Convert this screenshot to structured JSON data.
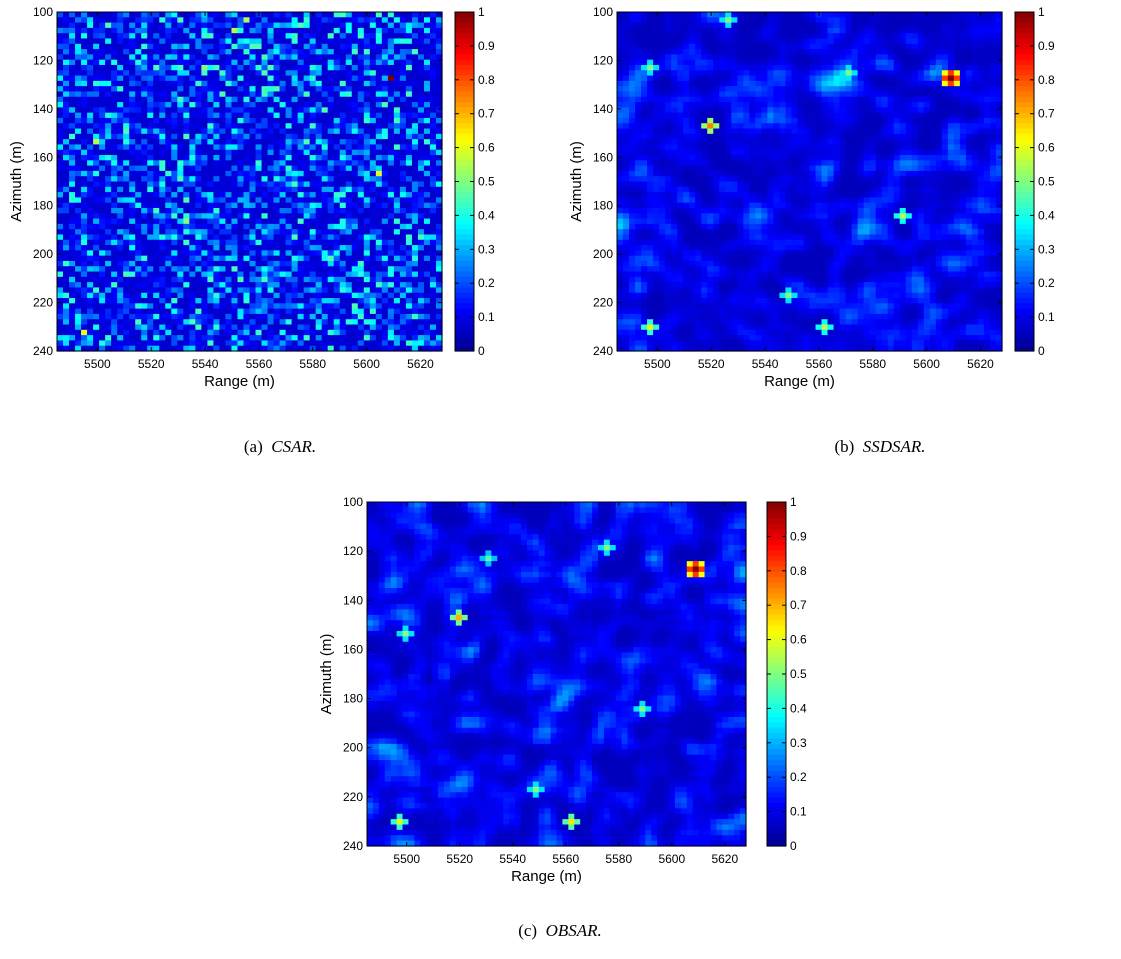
{
  "colormap": "jet",
  "colorbar": {
    "range": [
      0,
      1
    ],
    "ticks": [
      "0",
      "0.1",
      "0.2",
      "0.3",
      "0.4",
      "0.5",
      "0.6",
      "0.7",
      "0.8",
      "0.9",
      "1"
    ],
    "colors": [
      "#00008f",
      "#0000ff",
      "#00ffff",
      "#ffff00",
      "#ff0000",
      "#800000"
    ]
  },
  "panels": [
    {
      "id": "a",
      "caption_prefix": "(a)",
      "caption_name": "CSAR.",
      "smoothness": "none"
    },
    {
      "id": "b",
      "caption_prefix": "(b)",
      "caption_name": "SSDSAR.",
      "smoothness": "smooth"
    },
    {
      "id": "c",
      "caption_prefix": "(c)",
      "caption_name": "OBSAR.",
      "smoothness": "smooth"
    }
  ],
  "chart_data": [
    {
      "type": "heatmap",
      "xlabel": "Range (m)",
      "ylabel": "Azimuth (m)",
      "xlim": [
        5485,
        5628
      ],
      "ylim": [
        100,
        240
      ],
      "y_reversed": true,
      "x_ticks": [
        5500,
        5520,
        5540,
        5560,
        5580,
        5600,
        5620
      ],
      "y_ticks": [
        100,
        120,
        140,
        160,
        180,
        200,
        220,
        240
      ],
      "grid": [
        64,
        64
      ],
      "clim": [
        0,
        1
      ],
      "target": {
        "x": 5610,
        "y": 127,
        "value": 1.0,
        "size": 1
      },
      "hotspots": [
        {
          "x": 5495,
          "y": 232,
          "value": 0.6
        },
        {
          "x": 5550,
          "y": 108,
          "value": 0.55
        },
        {
          "x": 5500,
          "y": 153,
          "value": 0.55
        },
        {
          "x": 5533,
          "y": 186,
          "value": 0.5
        },
        {
          "x": 5605,
          "y": 167,
          "value": 0.6
        },
        {
          "x": 5555,
          "y": 103,
          "value": 0.55
        },
        {
          "x": 5540,
          "y": 124,
          "value": 0.5
        },
        {
          "x": 5585,
          "y": 141,
          "value": 0.45
        }
      ]
    },
    {
      "type": "heatmap",
      "xlabel": "Range (m)",
      "ylabel": "Azimuth (m)",
      "xlim": [
        5485,
        5628
      ],
      "ylim": [
        100,
        240
      ],
      "y_reversed": true,
      "x_ticks": [
        5500,
        5520,
        5540,
        5560,
        5580,
        5600,
        5620
      ],
      "y_ticks": [
        100,
        120,
        140,
        160,
        180,
        200,
        220,
        240
      ],
      "grid": [
        64,
        64
      ],
      "clim": [
        0,
        1
      ],
      "target": {
        "x": 5609,
        "y": 127,
        "value": 1.0,
        "size": 3
      },
      "hotspots": [
        {
          "x": 5519,
          "y": 146,
          "value": 0.75
        },
        {
          "x": 5497,
          "y": 231,
          "value": 0.6
        },
        {
          "x": 5562,
          "y": 230,
          "value": 0.55
        },
        {
          "x": 5497,
          "y": 124,
          "value": 0.5
        },
        {
          "x": 5591,
          "y": 184,
          "value": 0.55
        },
        {
          "x": 5527,
          "y": 103,
          "value": 0.5
        },
        {
          "x": 5572,
          "y": 125,
          "value": 0.5
        },
        {
          "x": 5548,
          "y": 217,
          "value": 0.5
        }
      ]
    },
    {
      "type": "heatmap",
      "xlabel": "Range (m)",
      "ylabel": "Azimuth (m)",
      "xlim": [
        5485,
        5628
      ],
      "ylim": [
        100,
        240
      ],
      "y_reversed": true,
      "x_ticks": [
        5500,
        5520,
        5540,
        5560,
        5580,
        5600,
        5620
      ],
      "y_ticks": [
        100,
        120,
        140,
        160,
        180,
        200,
        220,
        240
      ],
      "grid": [
        64,
        64
      ],
      "clim": [
        0,
        1
      ],
      "target": {
        "x": 5609,
        "y": 127,
        "value": 1.0,
        "size": 3
      },
      "hotspots": [
        {
          "x": 5519,
          "y": 146,
          "value": 0.7
        },
        {
          "x": 5497,
          "y": 231,
          "value": 0.6
        },
        {
          "x": 5562,
          "y": 231,
          "value": 0.65
        },
        {
          "x": 5575,
          "y": 118,
          "value": 0.5
        },
        {
          "x": 5590,
          "y": 184,
          "value": 0.5
        },
        {
          "x": 5500,
          "y": 153,
          "value": 0.5
        },
        {
          "x": 5548,
          "y": 217,
          "value": 0.5
        },
        {
          "x": 5530,
          "y": 124,
          "value": 0.45
        }
      ]
    }
  ]
}
